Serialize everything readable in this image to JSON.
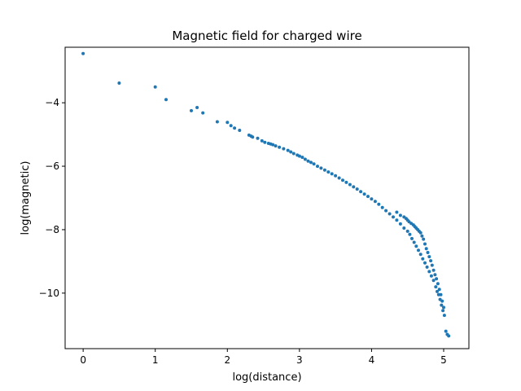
{
  "chart_data": {
    "type": "scatter",
    "title": "Magnetic field for charged wire",
    "xlabel": "log(distance)",
    "ylabel": "log(magnetic)",
    "xlim": [
      -0.25,
      5.35
    ],
    "ylim": [
      -11.75,
      -2.25
    ],
    "xticks": [
      0,
      1,
      2,
      3,
      4,
      5
    ],
    "yticks": [
      -4,
      -6,
      -8,
      -10
    ],
    "xtick_labels": [
      "0",
      "1",
      "2",
      "3",
      "4",
      "5"
    ],
    "ytick_labels": [
      "−4",
      "−6",
      "−8",
      "−10"
    ],
    "grid": false,
    "marker_color": "#1f77b4",
    "series": [
      {
        "x": [
          0,
          0.5,
          1.0,
          1.15,
          1.5,
          1.58,
          1.66,
          1.86,
          2.0,
          2.05,
          2.1,
          2.17,
          2.3,
          2.33,
          2.35,
          2.42,
          2.48,
          2.52,
          2.57,
          2.6,
          2.63,
          2.67,
          2.72,
          2.78,
          2.84,
          2.88,
          2.92,
          2.97,
          3.0,
          3.04,
          3.08,
          3.12,
          3.16,
          3.2,
          3.25,
          3.3,
          3.35,
          3.4,
          3.45,
          3.5,
          3.55,
          3.6,
          3.65,
          3.7,
          3.75,
          3.8,
          3.85,
          3.9,
          3.95,
          4.0,
          4.05,
          4.1,
          4.15,
          4.2,
          4.25,
          4.3,
          4.35,
          4.4,
          4.45,
          4.5,
          4.53,
          4.56,
          4.59,
          4.62,
          4.65,
          4.68,
          4.71,
          4.74,
          4.77,
          4.8,
          4.83,
          4.86,
          4.89,
          4.91,
          4.93,
          4.95,
          4.97,
          4.99,
          5.01,
          5.03,
          5.05,
          5.07,
          4.35,
          4.4,
          4.45,
          4.48,
          4.5,
          4.52,
          4.55,
          4.58,
          4.6,
          4.62,
          4.64,
          4.66,
          4.68,
          4.7,
          4.72,
          4.74,
          4.76,
          4.78,
          4.8,
          4.82,
          4.84,
          4.86,
          4.88,
          4.9,
          4.92,
          4.94,
          4.96,
          4.98,
          5.0
        ],
        "y": [
          -2.45,
          -3.38,
          -3.5,
          -3.9,
          -4.25,
          -4.15,
          -4.32,
          -4.6,
          -4.62,
          -4.72,
          -4.8,
          -4.87,
          -5.02,
          -5.05,
          -5.08,
          -5.12,
          -5.2,
          -5.25,
          -5.28,
          -5.3,
          -5.32,
          -5.36,
          -5.4,
          -5.45,
          -5.5,
          -5.55,
          -5.6,
          -5.65,
          -5.68,
          -5.72,
          -5.78,
          -5.84,
          -5.88,
          -5.93,
          -6.0,
          -6.06,
          -6.12,
          -6.18,
          -6.24,
          -6.3,
          -6.37,
          -6.44,
          -6.51,
          -6.58,
          -6.65,
          -6.72,
          -6.8,
          -6.88,
          -6.95,
          -7.03,
          -7.11,
          -7.2,
          -7.3,
          -7.4,
          -7.5,
          -7.6,
          -7.7,
          -7.82,
          -7.95,
          -8.05,
          -8.15,
          -8.28,
          -8.4,
          -8.52,
          -8.65,
          -8.78,
          -8.92,
          -9.05,
          -9.18,
          -9.32,
          -9.46,
          -9.6,
          -9.8,
          -9.95,
          -10.05,
          -10.2,
          -10.38,
          -10.55,
          -10.7,
          -11.2,
          -11.3,
          -11.35,
          -7.45,
          -7.55,
          -7.6,
          -7.65,
          -7.7,
          -7.75,
          -7.8,
          -7.85,
          -7.9,
          -7.95,
          -8.0,
          -8.05,
          -8.1,
          -8.2,
          -8.3,
          -8.45,
          -8.6,
          -8.72,
          -8.85,
          -8.98,
          -9.12,
          -9.28,
          -9.42,
          -9.55,
          -9.7,
          -9.88,
          -10.05,
          -10.25,
          -10.45
        ]
      }
    ]
  }
}
